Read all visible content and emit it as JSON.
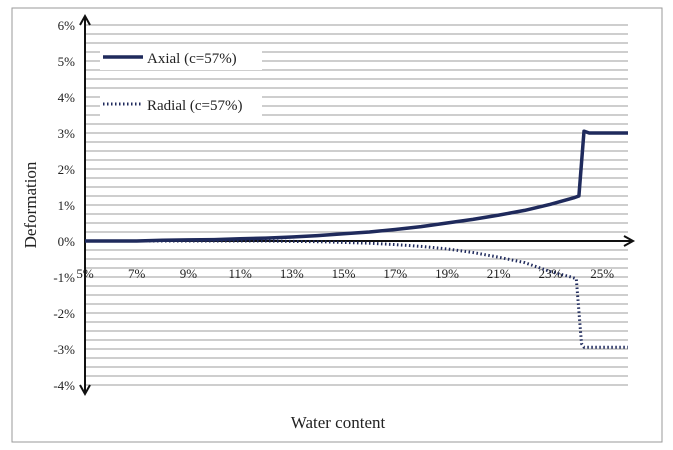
{
  "chart_data": {
    "type": "line",
    "xlabel": "Water content",
    "ylabel": "Deformation",
    "x_ticks": [
      "5%",
      "7%",
      "9%",
      "11%",
      "13%",
      "15%",
      "17%",
      "19%",
      "21%",
      "23%",
      "25%"
    ],
    "y_ticks": [
      "6%",
      "5%",
      "4%",
      "3%",
      "2%",
      "1%",
      "0%",
      "-1%",
      "-2%",
      "-3%",
      "-4%"
    ],
    "xlim": [
      5,
      26
    ],
    "ylim": [
      -4,
      6
    ],
    "grid": true,
    "legend": "top-left",
    "series": [
      {
        "name": "Axial (c=57%)",
        "style": "solid",
        "color": "#1f2a5c",
        "points": [
          [
            5,
            0
          ],
          [
            6,
            0
          ],
          [
            7,
            0
          ],
          [
            8,
            0.02
          ],
          [
            9,
            0.03
          ],
          [
            10,
            0.04
          ],
          [
            11,
            0.06
          ],
          [
            12,
            0.08
          ],
          [
            13,
            0.11
          ],
          [
            14,
            0.15
          ],
          [
            15,
            0.2
          ],
          [
            16,
            0.25
          ],
          [
            17,
            0.32
          ],
          [
            18,
            0.4
          ],
          [
            19,
            0.5
          ],
          [
            20,
            0.6
          ],
          [
            21,
            0.72
          ],
          [
            22,
            0.85
          ],
          [
            23,
            1.02
          ],
          [
            23.9,
            1.2
          ],
          [
            24.1,
            1.25
          ],
          [
            24.3,
            3.05
          ],
          [
            24.5,
            3.0
          ],
          [
            26,
            3.0
          ]
        ]
      },
      {
        "name": "Radial (c=57%)",
        "style": "dotted",
        "color": "#1f2a5c",
        "points": [
          [
            5,
            0
          ],
          [
            6,
            0
          ],
          [
            7,
            0
          ],
          [
            8,
            0
          ],
          [
            9,
            0
          ],
          [
            10,
            0
          ],
          [
            11,
            0
          ],
          [
            12,
            0
          ],
          [
            13,
            -0.01
          ],
          [
            14,
            -0.02
          ],
          [
            15,
            -0.04
          ],
          [
            16,
            -0.06
          ],
          [
            17,
            -0.1
          ],
          [
            18,
            -0.15
          ],
          [
            19,
            -0.22
          ],
          [
            20,
            -0.32
          ],
          [
            21,
            -0.45
          ],
          [
            22,
            -0.6
          ],
          [
            23,
            -0.85
          ],
          [
            23.8,
            -1.0
          ],
          [
            24.0,
            -1.05
          ],
          [
            24.2,
            -2.85
          ],
          [
            24.3,
            -2.95
          ],
          [
            26,
            -2.95
          ]
        ]
      }
    ]
  }
}
